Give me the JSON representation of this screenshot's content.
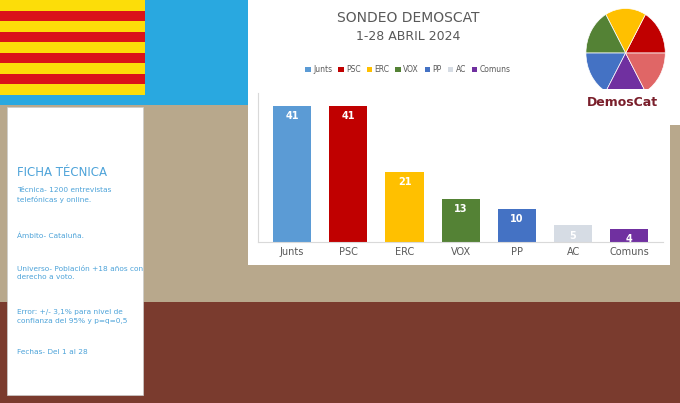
{
  "chart_data": {
    "type": "bar",
    "title": "SONDEO DEMOSCAT",
    "subtitle": "1-28 ABRIL 2024",
    "categories": [
      "Junts",
      "PSC",
      "ERC",
      "VOX",
      "PP",
      "AC",
      "Comuns"
    ],
    "values": [
      41,
      41,
      21,
      13,
      10,
      5,
      4
    ],
    "colors": [
      "#5b9bd5",
      "#c00000",
      "#ffc000",
      "#548235",
      "#4472c4",
      "#d6dce4",
      "#7030a0"
    ],
    "ylim": [
      0,
      45
    ],
    "data_labels": true,
    "tick_labels": "x",
    "legend": "upper center",
    "grid": false
  },
  "ficha_tecnica": {
    "title": "FICHA TÉCNICA",
    "items": [
      "Técnica- 1200 entrevistas\ntelefónicas y online.",
      "Ámbito- Cataluña.",
      "Universo- Población +18 años con\nderecho a voto.",
      "Error: +/- 3,1% para nivel de\nconfianza del 95% y p=q=0,5",
      "Fechas- Del 1 al 28"
    ]
  },
  "logo": {
    "text": "DemosCat"
  }
}
